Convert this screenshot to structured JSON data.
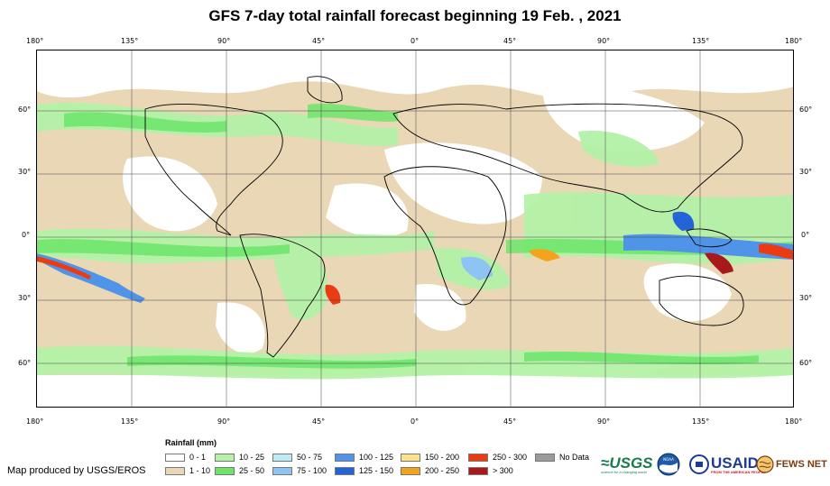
{
  "title": "GFS 7-day total rainfall forecast beginning 19 Feb. , 2021",
  "longitude_ticks": [
    "180°",
    "135°",
    "90°",
    "45°",
    "0°",
    "45°",
    "90°",
    "135°",
    "180°"
  ],
  "latitude_ticks": [
    "60°",
    "30°",
    "0°",
    "30°",
    "60°"
  ],
  "legend": {
    "title": "Rainfall (mm)",
    "items": [
      {
        "label": "0 - 1",
        "color": "#ffffff"
      },
      {
        "label": "1 - 10",
        "color": "#e9d7b6"
      },
      {
        "label": "10 - 25",
        "color": "#b4f2a8"
      },
      {
        "label": "25 - 50",
        "color": "#6ce56a"
      },
      {
        "label": "50 - 75",
        "color": "#b9ecf7"
      },
      {
        "label": "75 - 100",
        "color": "#8ec4f4"
      },
      {
        "label": "100 - 125",
        "color": "#4f94e8"
      },
      {
        "label": "125 - 150",
        "color": "#2563d9"
      },
      {
        "label": "150 - 200",
        "color": "#fde08a"
      },
      {
        "label": "200 - 250",
        "color": "#f5a31c"
      },
      {
        "label": "250 - 300",
        "color": "#ea3b12"
      },
      {
        "label": "> 300",
        "color": "#a8191c"
      },
      {
        "label": "No Data",
        "color": "#9b9b9b"
      }
    ]
  },
  "credit": "Map produced by USGS/EROS",
  "logos": {
    "usgs": "≈USGS",
    "usgs_tagline": "science for a changing world",
    "noaa": "NOAA",
    "usaid": "USAID",
    "usaid_tagline": "FROM THE AMERICAN PEOPLE",
    "fews": "FEWS NET"
  }
}
